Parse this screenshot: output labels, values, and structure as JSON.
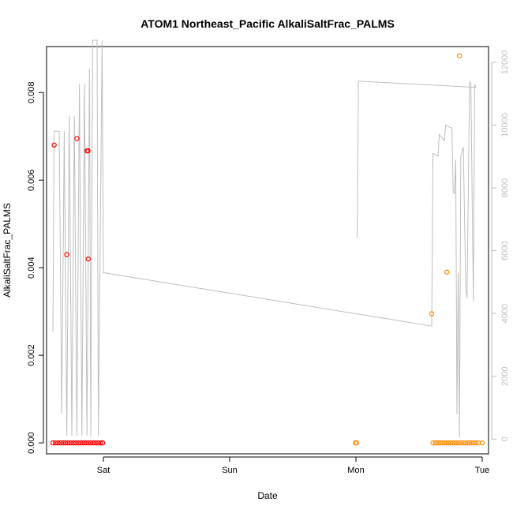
{
  "chart_data": {
    "type": "scatter",
    "title": "ATOM1 Northeast_Pacific AlkaliSaltFrac_PALMS",
    "xlabel": "Date",
    "ylabel": "AlkaliSaltFrac_PALMS",
    "x_unit": "days",
    "xlim": [
      -0.45,
      3.05
    ],
    "ylim": [
      -0.00025,
      0.00905
    ],
    "x_ticks": [
      {
        "label": "Sat",
        "value": 0
      },
      {
        "label": "Sun",
        "value": 1
      },
      {
        "label": "Mon",
        "value": 2
      },
      {
        "label": "Tue",
        "value": 3
      }
    ],
    "y_ticks": [
      0,
      0.002,
      0.004,
      0.006,
      0.008
    ],
    "y_tick_labels": [
      "0.000",
      "0.002",
      "0.004",
      "0.006",
      "0.008"
    ],
    "y2_ticks": [
      0,
      2000,
      4000,
      6000,
      8000,
      10000,
      12000
    ],
    "y2_lim": [
      -470,
      12500
    ],
    "colors": {
      "series_red": "#ff0000",
      "series_orange": "#ff8c00",
      "altitude_line": "#bebebe",
      "axis": "#000000"
    },
    "series": [
      {
        "color": "#ff0000",
        "points": [
          [
            -0.39,
            0.0068
          ],
          [
            -0.29,
            0.0043
          ],
          [
            -0.21,
            0.00695
          ],
          [
            -0.13,
            0.00667
          ],
          [
            -0.122,
            0.00667
          ],
          [
            -0.12,
            0.0042
          ],
          [
            -0.4,
            0
          ],
          [
            -0.38,
            0
          ],
          [
            -0.36,
            0
          ],
          [
            -0.34,
            0
          ],
          [
            -0.32,
            0
          ],
          [
            -0.3,
            0
          ],
          [
            -0.28,
            0
          ],
          [
            -0.26,
            0
          ],
          [
            -0.24,
            0
          ],
          [
            -0.22,
            0
          ],
          [
            -0.2,
            0
          ],
          [
            -0.18,
            0
          ],
          [
            -0.16,
            0
          ],
          [
            -0.14,
            0
          ],
          [
            -0.12,
            0
          ],
          [
            -0.1,
            0
          ],
          [
            -0.08,
            0
          ],
          [
            -0.06,
            0
          ],
          [
            -0.04,
            0
          ],
          [
            -0.02,
            0
          ],
          [
            -0.005,
            0
          ]
        ]
      },
      {
        "color": "#ff8c00",
        "points": [
          [
            2.6,
            0.00295
          ],
          [
            2.72,
            0.0039
          ],
          [
            2.82,
            0.00884
          ],
          [
            1.995,
            0
          ],
          [
            2.005,
            0
          ],
          [
            2.61,
            0
          ],
          [
            2.63,
            0
          ],
          [
            2.65,
            0
          ],
          [
            2.67,
            0
          ],
          [
            2.69,
            0
          ],
          [
            2.71,
            0
          ],
          [
            2.73,
            0
          ],
          [
            2.75,
            0
          ],
          [
            2.77,
            0
          ],
          [
            2.79,
            0
          ],
          [
            2.81,
            0
          ],
          [
            2.83,
            0
          ],
          [
            2.85,
            0
          ],
          [
            2.87,
            0
          ],
          [
            2.89,
            0
          ],
          [
            2.91,
            0
          ],
          [
            2.93,
            0
          ],
          [
            2.95,
            0
          ],
          [
            2.97,
            0
          ],
          [
            3.0,
            0
          ]
        ]
      }
    ],
    "altitude_line": [
      [
        -0.4,
        3400
      ],
      [
        -0.39,
        9800
      ],
      [
        -0.35,
        9800
      ],
      [
        -0.33,
        800
      ],
      [
        -0.31,
        9800
      ],
      [
        -0.29,
        100
      ],
      [
        -0.27,
        10300
      ],
      [
        -0.25,
        100
      ],
      [
        -0.23,
        10300
      ],
      [
        -0.21,
        100
      ],
      [
        -0.19,
        11300
      ],
      [
        -0.17,
        100
      ],
      [
        -0.15,
        11300
      ],
      [
        -0.13,
        100
      ],
      [
        -0.11,
        11800
      ],
      [
        -0.1,
        100
      ],
      [
        -0.085,
        12700
      ],
      [
        -0.05,
        12700
      ],
      [
        -0.04,
        100
      ],
      [
        -0.01,
        12700
      ],
      [
        0.0,
        5300
      ],
      [
        2.6,
        3600
      ],
      [
        2.61,
        9100
      ],
      [
        2.65,
        9000
      ],
      [
        2.66,
        9700
      ],
      [
        2.7,
        9500
      ],
      [
        2.71,
        10000
      ],
      [
        2.76,
        9900
      ],
      [
        2.77,
        7900
      ],
      [
        2.78,
        7800
      ],
      [
        2.79,
        8900
      ],
      [
        2.8,
        800
      ],
      [
        2.81,
        5300
      ],
      [
        2.82,
        50
      ],
      [
        2.83,
        9000
      ],
      [
        2.85,
        9300
      ],
      [
        2.87,
        4800
      ],
      [
        2.88,
        4500
      ],
      [
        2.9,
        11400
      ],
      [
        2.91,
        11300
      ],
      [
        2.93,
        4400
      ],
      [
        2.94,
        11300
      ],
      [
        2.95,
        11200
      ],
      [
        2.02,
        11400
      ],
      [
        2.01,
        6400
      ]
    ]
  }
}
